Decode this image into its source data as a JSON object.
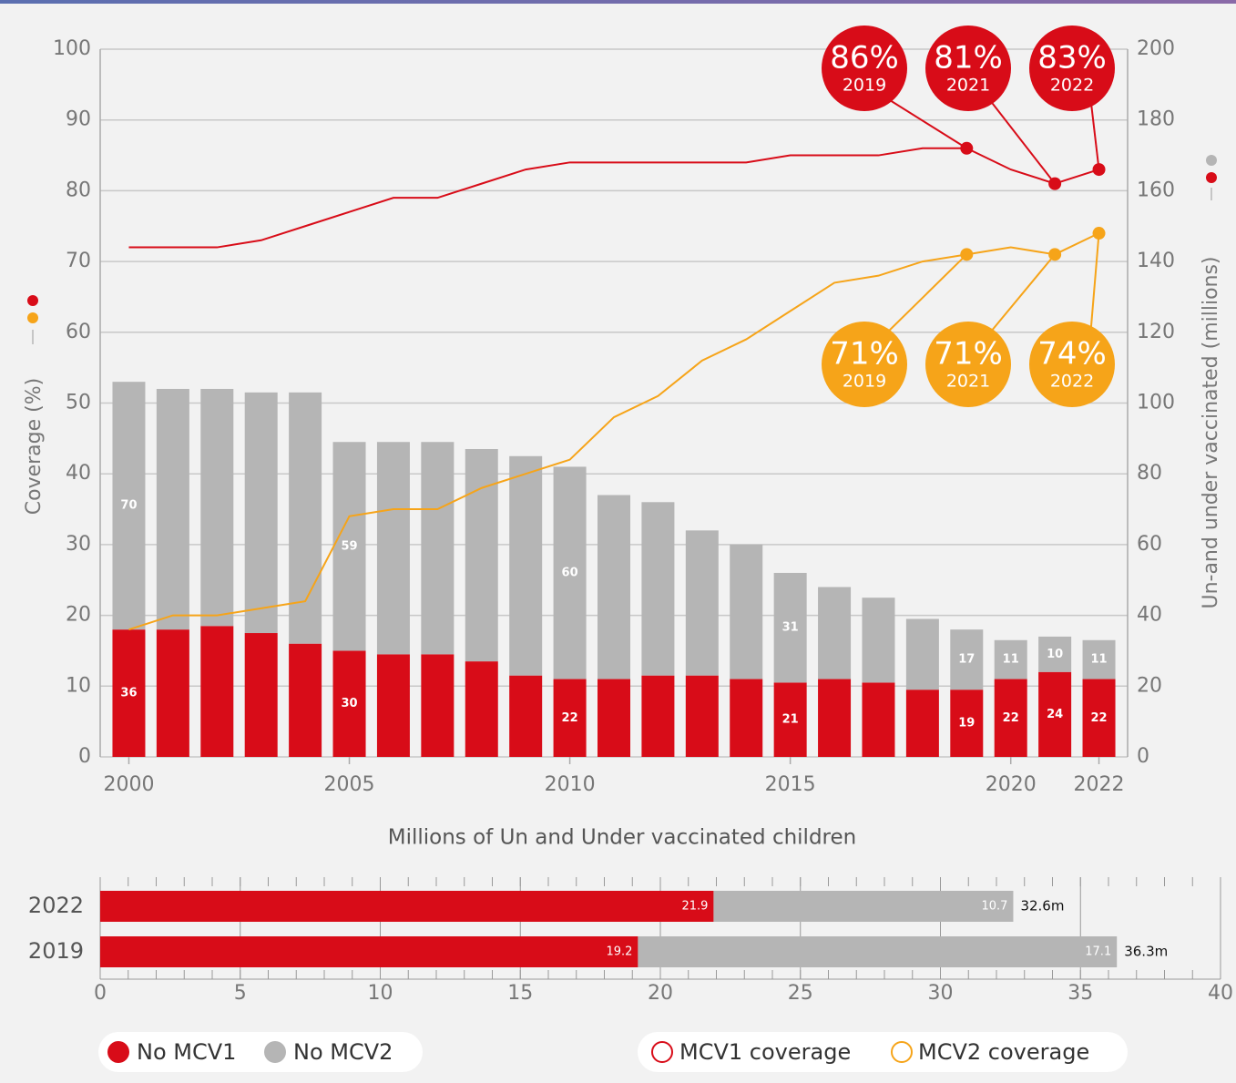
{
  "chart_data": [
    {
      "type": "bar",
      "x": [
        2000,
        2001,
        2002,
        2003,
        2004,
        2005,
        2006,
        2007,
        2008,
        2009,
        2010,
        2011,
        2012,
        2013,
        2014,
        2015,
        2016,
        2017,
        2018,
        2019,
        2020,
        2021,
        2022
      ],
      "xlim": [
        1999.35,
        2022.65
      ],
      "xticks": [
        2000,
        2005,
        2010,
        2015,
        2020,
        2022
      ],
      "ylabel": "Coverage (%)",
      "ylim": [
        0,
        100
      ],
      "yticks": [
        0,
        10,
        20,
        30,
        40,
        50,
        60,
        70,
        80,
        90,
        100
      ],
      "y2label": "Un-and under vaccinated (millions)",
      "y2lim": [
        0,
        200
      ],
      "y2ticks": [
        0,
        20,
        40,
        60,
        80,
        100,
        120,
        140,
        160,
        180,
        200
      ],
      "grid": true,
      "series": [
        {
          "name": "No MCV1",
          "type": "bar",
          "axis": "y2",
          "color": "#d80c18",
          "values": [
            36,
            36,
            37,
            35,
            32,
            30,
            29,
            29,
            27,
            23,
            22,
            22,
            23,
            23,
            22,
            21,
            22,
            21,
            19,
            19,
            22,
            24,
            22
          ],
          "value_labels": [
            36,
            null,
            null,
            null,
            null,
            30,
            null,
            null,
            null,
            null,
            22,
            null,
            null,
            null,
            null,
            21,
            null,
            null,
            null,
            19,
            22,
            24,
            22
          ]
        },
        {
          "name": "No MCV2",
          "type": "bar",
          "axis": "y2",
          "color": "#b5b5b5",
          "values": [
            70,
            68,
            67,
            68,
            71,
            59,
            60,
            60,
            60,
            62,
            60,
            52,
            49,
            41,
            38,
            31,
            26,
            24,
            20,
            17,
            11,
            10,
            11
          ],
          "value_labels": [
            70,
            null,
            null,
            null,
            null,
            59,
            null,
            null,
            null,
            null,
            60,
            null,
            null,
            null,
            null,
            31,
            null,
            null,
            null,
            17,
            11,
            10,
            11
          ]
        },
        {
          "name": "MCV1 coverage",
          "type": "line",
          "color": "#d80c18",
          "values": [
            72,
            72,
            72,
            73,
            75,
            77,
            79,
            79,
            81,
            83,
            84,
            84,
            84,
            84,
            84,
            85,
            85,
            85,
            86,
            86,
            83,
            81,
            83
          ],
          "value_labels": [
            null,
            null,
            null,
            null,
            null,
            null,
            null,
            null,
            null,
            null,
            null,
            null,
            null,
            null,
            null,
            null,
            null,
            null,
            null,
            "86%",
            null,
            "81%",
            "83%"
          ]
        },
        {
          "name": "MCV2 coverage",
          "type": "line",
          "color": "#f6a419",
          "values": [
            18,
            20,
            20,
            21,
            22,
            34,
            35,
            35,
            38,
            40,
            42,
            48,
            51,
            56,
            59,
            63,
            67,
            68,
            70,
            71,
            72,
            71,
            74
          ],
          "value_labels": [
            null,
            null,
            null,
            null,
            null,
            null,
            null,
            null,
            null,
            null,
            null,
            null,
            null,
            null,
            null,
            null,
            null,
            null,
            null,
            "71%",
            null,
            "71%",
            "74%"
          ]
        }
      ]
    },
    {
      "type": "barh",
      "title": "Millions of Un and Under vaccinated children",
      "categories": [
        "2022",
        "2019"
      ],
      "xlim": [
        0,
        40
      ],
      "xticks": [
        0,
        5,
        10,
        15,
        20,
        25,
        30,
        35,
        40
      ],
      "series": [
        {
          "color": "#d80c18",
          "values": [
            21.9,
            19.2
          ]
        },
        {
          "color": "#b5b5b5",
          "values": [
            10.7,
            17.1
          ]
        }
      ],
      "total_labels": [
        "32.6m",
        "36.3m"
      ]
    }
  ]
}
